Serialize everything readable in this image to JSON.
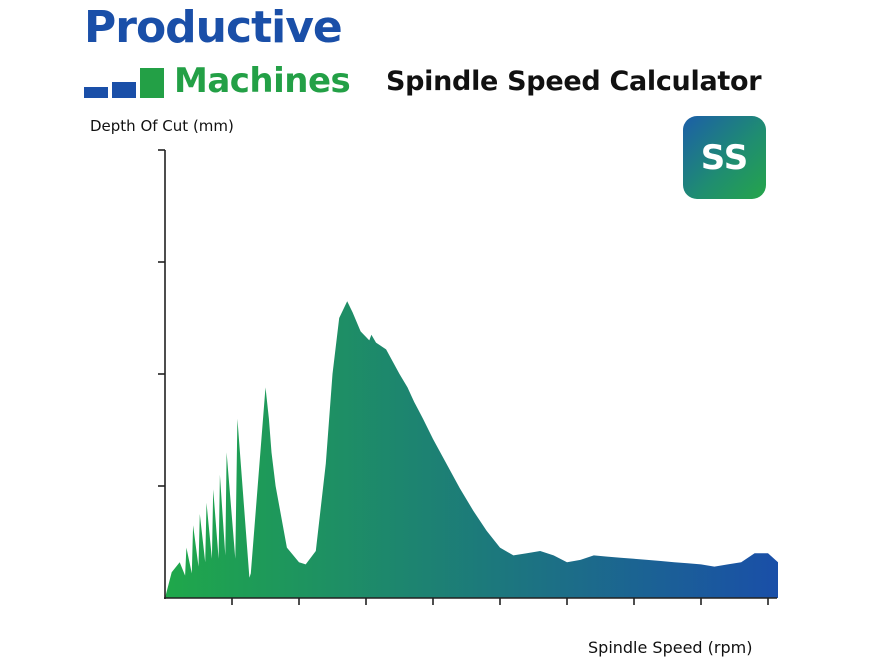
{
  "logo": {
    "line1": "Productive",
    "line2": "Machines",
    "colors": {
      "blue": "#1a4fa8",
      "green": "#23a046"
    }
  },
  "app": {
    "title": "Spindle Speed Calculator"
  },
  "badge": {
    "text": "SS"
  },
  "chart_data": {
    "type": "area",
    "title": "",
    "xlabel": "Spindle Speed (rpm)",
    "ylabel": "Depth Of Cut (mm)",
    "x_tick_labels": [],
    "y_tick_labels": [],
    "xlim": [
      0,
      9
    ],
    "ylim": [
      0,
      4
    ],
    "grid": false,
    "gradient_colors": [
      "#1fa84a",
      "#1a4fa8"
    ],
    "series": [
      {
        "x": [
          0,
          0.1,
          0.22,
          0.3,
          0.32,
          0.4,
          0.42,
          0.5,
          0.52,
          0.6,
          0.62,
          0.7,
          0.72,
          0.8,
          0.82,
          0.9,
          0.92,
          1.05,
          1.08,
          1.26,
          1.28,
          1.5,
          1.55,
          1.59,
          1.65,
          1.82,
          2.0,
          2.1,
          2.25,
          2.4,
          2.5,
          2.6,
          2.72,
          2.8,
          2.92,
          3.05,
          3.08,
          3.15,
          3.3,
          3.5,
          3.62,
          3.68,
          3.72,
          3.78,
          3.85,
          4.0,
          4.2,
          4.4,
          4.6,
          4.8,
          5.0,
          5.2,
          5.4,
          5.6,
          5.8,
          6.0,
          6.2,
          6.4,
          6.6,
          6.8,
          7.0,
          7.2,
          7.4,
          7.6,
          7.8,
          8.0,
          8.2,
          8.4,
          8.6,
          8.8,
          9.0,
          9.15
        ],
        "y": [
          0,
          0.23,
          0.32,
          0.2,
          0.45,
          0.22,
          0.65,
          0.28,
          0.75,
          0.32,
          0.85,
          0.35,
          0.97,
          0.35,
          1.1,
          0.38,
          1.3,
          0.35,
          1.6,
          0.18,
          0.22,
          1.88,
          1.6,
          1.3,
          1.0,
          0.45,
          0.32,
          0.3,
          0.42,
          1.2,
          2.0,
          2.5,
          2.65,
          2.55,
          2.38,
          2.3,
          2.35,
          2.28,
          2.22,
          2.0,
          1.88,
          1.8,
          1.75,
          1.68,
          1.6,
          1.42,
          1.2,
          0.98,
          0.78,
          0.6,
          0.45,
          0.38,
          0.4,
          0.42,
          0.38,
          0.32,
          0.34,
          0.38,
          0.37,
          0.36,
          0.35,
          0.34,
          0.33,
          0.32,
          0.31,
          0.3,
          0.28,
          0.3,
          0.32,
          0.4,
          0.4,
          0.32
        ]
      }
    ]
  }
}
